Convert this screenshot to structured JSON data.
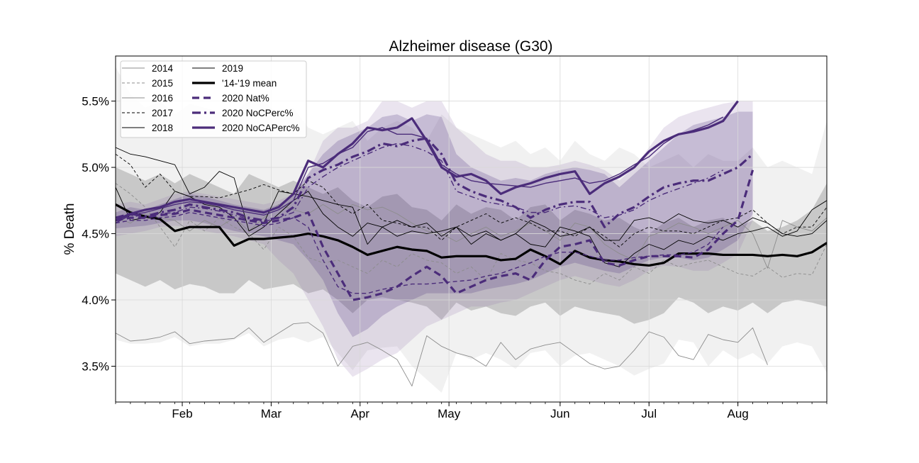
{
  "chart_data": {
    "type": "line",
    "title": "Alzheimer disease (G30)",
    "xlabel": "",
    "ylabel": "% Death",
    "ylim": [
      3.23,
      5.84
    ],
    "xlim": [
      0,
      48
    ],
    "x_unit": "week of year",
    "grid": true,
    "legend_position": "top-left",
    "x_ticks": [
      {
        "label": "Feb",
        "x": 4.5
      },
      {
        "label": "Mar",
        "x": 10.5
      },
      {
        "label": "Apr",
        "x": 16.5
      },
      {
        "label": "May",
        "x": 22.5
      },
      {
        "label": "Jun",
        "x": 30.0
      },
      {
        "label": "Jul",
        "x": 36.0
      },
      {
        "label": "Aug",
        "x": 42.0
      }
    ],
    "y_ticks": [
      {
        "label": "3.5%",
        "value": 3.5
      },
      {
        "label": "4.0%",
        "value": 4.0
      },
      {
        "label": "4.5%",
        "value": 4.5
      },
      {
        "label": "5.0%",
        "value": 5.0
      },
      {
        "label": "5.5%",
        "value": 5.5
      }
    ],
    "colors": {
      "grey": "#8c8c8c",
      "black": "#000000",
      "purple": "#4b2c7a",
      "band_grey": "#bdbdbd",
      "band_purple": "#8a6aa8"
    },
    "bands": [
      {
        "name": "band-outer-grey",
        "color": "#bdbdbd",
        "opacity": 0.22,
        "x_start": 0,
        "upper": [
          5.76,
          5.55,
          5.45,
          5.5,
          5.4,
          5.48,
          5.45,
          5.42,
          5.4,
          5.52,
          5.5,
          5.4,
          5.45,
          5.3,
          5.25,
          5.3,
          5.35,
          5.2,
          5.3,
          5.35,
          5.3,
          5.2,
          5.4,
          5.3,
          5.25,
          5.2,
          5.15,
          5.2,
          5.1,
          5.15,
          5.05,
          5.2,
          5.1,
          5.05,
          5.15,
          5.1,
          5.0,
          5.05,
          5.1,
          5.0,
          5.1,
          5.05,
          5.05,
          5.15,
          5.0,
          5.05,
          5.0,
          4.95,
          5.35
        ],
        "lower": [
          3.7,
          3.67,
          3.67,
          3.68,
          3.72,
          3.65,
          3.67,
          3.67,
          3.7,
          3.75,
          3.65,
          3.7,
          3.72,
          3.68,
          3.72,
          3.6,
          3.47,
          3.62,
          3.64,
          3.65,
          3.5,
          3.4,
          3.3,
          3.6,
          3.55,
          3.6,
          3.55,
          3.48,
          3.6,
          3.62,
          3.5,
          3.58,
          3.6,
          3.55,
          3.5,
          3.43,
          3.48,
          3.52,
          3.7,
          3.68,
          3.5,
          3.62,
          3.55,
          3.6,
          3.52,
          3.65,
          3.68,
          3.65,
          3.45
        ]
      },
      {
        "name": "band-mean-grey",
        "color": "#8c8c8c",
        "opacity": 0.4,
        "x_start": 0,
        "upper": [
          5.0,
          4.95,
          4.9,
          4.95,
          4.88,
          4.95,
          4.9,
          4.85,
          4.8,
          4.95,
          4.9,
          4.85,
          4.9,
          4.85,
          4.8,
          4.85,
          4.75,
          4.7,
          4.78,
          4.8,
          4.7,
          4.68,
          4.6,
          4.72,
          4.65,
          4.7,
          4.68,
          4.6,
          4.7,
          4.72,
          4.6,
          4.68,
          4.65,
          4.6,
          4.62,
          4.55,
          4.5,
          4.58,
          4.62,
          4.55,
          4.6,
          4.62,
          4.55,
          4.6,
          4.52,
          4.55,
          4.6,
          4.68,
          4.88
        ],
        "lower": [
          4.2,
          4.15,
          4.1,
          4.15,
          4.08,
          4.12,
          4.1,
          4.05,
          4.05,
          4.15,
          4.08,
          4.1,
          4.12,
          4.05,
          4.08,
          4.0,
          3.9,
          4.0,
          4.02,
          4.0,
          3.98,
          3.95,
          3.85,
          3.98,
          3.92,
          3.95,
          3.9,
          3.88,
          3.95,
          3.98,
          3.88,
          3.95,
          3.92,
          3.9,
          3.88,
          3.82,
          3.85,
          3.9,
          4.02,
          3.98,
          3.9,
          3.95,
          3.92,
          3.98,
          3.9,
          3.98,
          4.0,
          3.98,
          3.95
        ]
      },
      {
        "name": "band-outer-purple",
        "color": "#8a6aa8",
        "opacity": 0.18,
        "x_start": 0,
        "upper": [
          4.72,
          4.74,
          4.72,
          4.76,
          4.8,
          4.82,
          4.8,
          4.78,
          4.76,
          4.74,
          4.72,
          4.75,
          4.8,
          4.95,
          5.2,
          5.3,
          5.3,
          5.35,
          5.5,
          5.5,
          5.45,
          5.5,
          5.5,
          5.3,
          5.2,
          5.1,
          5.05,
          5.05,
          5.0,
          5.0,
          5.02,
          5.05,
          5.02,
          4.98,
          4.9,
          5.0,
          5.15,
          5.3,
          5.38,
          5.42,
          5.45,
          5.48,
          5.5,
          5.5
        ],
        "lower": [
          4.48,
          4.5,
          4.52,
          4.55,
          4.56,
          4.55,
          4.52,
          4.5,
          4.48,
          4.45,
          4.42,
          4.3,
          4.2,
          4.0,
          3.8,
          3.55,
          3.42,
          3.48,
          3.55,
          3.6,
          3.7,
          3.8,
          3.85,
          3.9,
          3.95,
          3.95,
          3.98,
          4.0,
          4.05,
          4.1,
          4.15,
          4.18,
          4.15,
          4.12,
          4.1,
          4.15,
          4.22,
          4.26,
          4.25,
          4.22,
          4.22,
          4.28,
          4.35,
          4.6
        ]
      },
      {
        "name": "band-inner-purple",
        "color": "#4b2c7a",
        "opacity": 0.22,
        "x_start": 0,
        "upper": [
          4.66,
          4.7,
          4.68,
          4.72,
          4.76,
          4.8,
          4.78,
          4.75,
          4.72,
          4.7,
          4.68,
          4.72,
          4.8,
          4.95,
          5.1,
          5.2,
          5.25,
          5.3,
          5.38,
          5.4,
          5.35,
          5.4,
          5.38,
          5.1,
          5.0,
          4.95,
          4.9,
          4.92,
          4.9,
          4.95,
          4.98,
          5.0,
          4.98,
          4.95,
          4.85,
          4.95,
          5.05,
          5.15,
          5.25,
          5.32,
          5.35,
          5.38,
          5.42,
          5.42
        ],
        "lower": [
          4.54,
          4.55,
          4.56,
          4.58,
          4.6,
          4.6,
          4.58,
          4.55,
          4.52,
          4.5,
          4.48,
          4.45,
          4.42,
          4.3,
          4.15,
          3.9,
          3.72,
          3.78,
          3.88,
          3.95,
          4.0,
          4.05,
          4.05,
          4.05,
          4.05,
          4.08,
          4.1,
          4.12,
          4.15,
          4.2,
          4.25,
          4.28,
          4.25,
          4.22,
          4.2,
          4.25,
          4.3,
          4.32,
          4.32,
          4.3,
          4.32,
          4.38,
          4.45,
          4.65
        ]
      }
    ],
    "series": [
      {
        "name": "2014",
        "style": "thin-grey-solid",
        "x_start": 0,
        "values": [
          3.75,
          3.69,
          3.7,
          3.72,
          3.76,
          3.67,
          3.69,
          3.7,
          3.71,
          3.79,
          3.68,
          3.75,
          3.82,
          3.83,
          3.75,
          3.5,
          3.65,
          3.68,
          3.62,
          3.55,
          3.35,
          3.73,
          3.65,
          3.6,
          3.57,
          3.5,
          3.68,
          3.55,
          3.63,
          3.66,
          3.68,
          3.6,
          3.52,
          3.48,
          3.5,
          3.62,
          3.76,
          3.72,
          3.58,
          3.55,
          3.74,
          3.7,
          3.68,
          3.79,
          3.51
        ]
      },
      {
        "name": "2015",
        "style": "thin-grey-dashed",
        "x_start": 0,
        "values": [
          4.88,
          4.8,
          4.7,
          4.55,
          4.4,
          4.6,
          4.52,
          4.62,
          4.55,
          4.5,
          4.38,
          4.55,
          4.48,
          4.32,
          4.28,
          4.3,
          4.25,
          4.2,
          4.3,
          4.25,
          4.35,
          4.3,
          4.28,
          4.2,
          4.25,
          4.15,
          4.35,
          4.3,
          4.28,
          4.22,
          4.2,
          4.15,
          4.12,
          4.2,
          4.15,
          4.25,
          4.2,
          4.3,
          4.25,
          4.28,
          4.3,
          4.25,
          4.2,
          4.18,
          4.25,
          4.17,
          4.2,
          4.19,
          4.42
        ]
      },
      {
        "name": "2016",
        "style": "thin-grey-solid",
        "x_start": 0,
        "values": [
          4.62,
          4.58,
          4.65,
          4.62,
          4.6,
          4.52,
          4.6,
          4.55,
          4.62,
          4.52,
          4.62,
          4.72,
          4.68,
          4.65,
          4.72,
          4.65,
          4.72,
          4.68,
          4.7,
          4.65,
          4.58,
          4.52,
          4.5,
          4.44,
          4.5,
          4.55,
          4.48,
          4.52,
          4.58,
          4.52,
          4.45,
          4.58,
          4.55,
          4.42,
          4.35,
          4.3,
          4.48,
          4.52,
          4.58,
          4.55,
          4.5,
          4.55,
          4.6,
          4.5,
          4.24,
          4.6,
          4.55,
          4.52,
          4.62
        ]
      },
      {
        "name": "2017",
        "style": "thin-black-dashed",
        "x_start": 0,
        "values": [
          5.1,
          5.02,
          4.85,
          4.95,
          4.82,
          4.78,
          4.78,
          4.77,
          4.8,
          4.83,
          4.87,
          4.83,
          4.8,
          4.9,
          4.85,
          4.72,
          4.65,
          4.72,
          4.6,
          4.58,
          4.55,
          4.55,
          4.45,
          4.55,
          4.6,
          4.65,
          4.58,
          4.62,
          4.58,
          4.52,
          4.52,
          4.48,
          4.55,
          4.48,
          4.4,
          4.5,
          4.55,
          4.52,
          4.52,
          4.5,
          4.55,
          4.6,
          4.62,
          4.68,
          4.58,
          4.5,
          4.55,
          4.55,
          4.7
        ]
      },
      {
        "name": "2018",
        "style": "thin-black-solid",
        "x_start": 0,
        "values": [
          5.15,
          5.1,
          5.08,
          5.05,
          5.02,
          4.8,
          4.85,
          4.97,
          4.92,
          4.52,
          4.58,
          4.82,
          4.8,
          4.78,
          4.75,
          4.72,
          4.7,
          4.42,
          4.55,
          4.6,
          4.55,
          4.58,
          4.48,
          4.55,
          4.42,
          4.5,
          4.45,
          4.5,
          4.6,
          4.55,
          4.48,
          4.5,
          4.55,
          4.45,
          4.45,
          4.6,
          4.62,
          4.58,
          4.65,
          4.6,
          4.58,
          4.6,
          4.55,
          4.62,
          4.58,
          4.5,
          4.48,
          4.5,
          4.6
        ]
      },
      {
        "name": "2019",
        "style": "thin-black-solid",
        "x_start": 0,
        "values": [
          4.85,
          4.6,
          4.62,
          4.66,
          4.82,
          4.78,
          4.72,
          4.7,
          4.62,
          4.48,
          4.55,
          4.65,
          4.75,
          4.82,
          4.65,
          4.55,
          4.48,
          4.58,
          4.55,
          4.48,
          4.52,
          4.5,
          4.52,
          4.55,
          4.48,
          4.52,
          4.45,
          4.5,
          4.42,
          4.4,
          4.55,
          4.52,
          4.48,
          4.28,
          4.25,
          4.35,
          4.42,
          4.38,
          4.45,
          4.42,
          4.48,
          4.45,
          4.5,
          4.52,
          4.55,
          4.48,
          4.52,
          4.68,
          4.75
        ]
      },
      {
        "name": "'14-'19 mean",
        "style": "thick-black-solid",
        "x_start": 0,
        "values": [
          4.72,
          4.66,
          4.63,
          4.61,
          4.52,
          4.55,
          4.55,
          4.55,
          4.41,
          4.46,
          4.46,
          4.47,
          4.48,
          4.5,
          4.48,
          4.45,
          4.4,
          4.34,
          4.37,
          4.4,
          4.38,
          4.37,
          4.32,
          4.33,
          4.33,
          4.33,
          4.3,
          4.31,
          4.38,
          4.33,
          4.27,
          4.37,
          4.32,
          4.3,
          4.29,
          4.27,
          4.26,
          4.28,
          4.35,
          4.35,
          4.35,
          4.34,
          4.34,
          4.34,
          4.33,
          4.34,
          4.33,
          4.36,
          4.43
        ]
      },
      {
        "name": "2020 Nat%",
        "style": "purple-dashed",
        "x_start": 0,
        "values": [
          4.6,
          4.62,
          4.62,
          4.64,
          4.65,
          4.68,
          4.66,
          4.64,
          4.62,
          4.6,
          4.58,
          4.6,
          4.62,
          4.66,
          4.4,
          4.2,
          4.0,
          4.02,
          4.05,
          4.1,
          4.18,
          4.25,
          4.18,
          4.05,
          4.1,
          4.15,
          4.18,
          4.2,
          4.15,
          4.3,
          4.4,
          4.42,
          4.45,
          4.28,
          4.26,
          4.3,
          4.33,
          4.33,
          4.33,
          4.32,
          4.38,
          4.5,
          4.6,
          4.98
        ]
      },
      {
        "name": "2020 NoCPerc%",
        "style": "purple-dashdot",
        "x_start": 0,
        "values": [
          4.62,
          4.65,
          4.63,
          4.66,
          4.68,
          4.72,
          4.7,
          4.68,
          4.66,
          4.62,
          4.6,
          4.62,
          4.7,
          4.92,
          4.98,
          5.02,
          5.08,
          5.12,
          5.18,
          5.16,
          5.2,
          5.22,
          5.1,
          4.88,
          4.82,
          4.78,
          4.75,
          4.7,
          4.62,
          4.68,
          4.72,
          4.74,
          4.74,
          4.55,
          4.65,
          4.7,
          4.78,
          4.85,
          4.88,
          4.9,
          4.9,
          4.95,
          5.0,
          5.1
        ]
      },
      {
        "name": "2020 NoCAPerc%",
        "style": "purple-solid",
        "x_start": 0,
        "values": [
          4.6,
          4.65,
          4.68,
          4.7,
          4.74,
          4.76,
          4.74,
          4.72,
          4.7,
          4.68,
          4.66,
          4.7,
          4.8,
          5.05,
          5.0,
          5.1,
          5.18,
          5.3,
          5.28,
          5.3,
          5.37,
          5.2,
          5.0,
          4.93,
          4.95,
          4.9,
          4.8,
          4.85,
          4.88,
          4.92,
          4.95,
          4.97,
          4.8,
          4.88,
          4.93,
          5.0,
          5.12,
          5.2,
          5.25,
          5.27,
          5.3,
          5.35,
          5.5
        ]
      },
      {
        "name": "",
        "style": "purple-solid-thin",
        "x_start": 0,
        "values": [
          4.58,
          4.64,
          4.66,
          4.69,
          4.72,
          4.74,
          4.73,
          4.71,
          4.68,
          4.66,
          4.64,
          4.68,
          4.75,
          5.0,
          5.03,
          5.1,
          5.15,
          5.27,
          5.3,
          5.25,
          5.25,
          5.22,
          5.02,
          4.95,
          4.9,
          4.88,
          4.87,
          4.86,
          4.85,
          4.88,
          4.9,
          4.92,
          4.88,
          4.9,
          4.95,
          5.02,
          5.08,
          5.18,
          5.25,
          5.28,
          5.32,
          5.38
        ]
      },
      {
        "name": "",
        "style": "purple-dashdot-thin",
        "x_start": 0,
        "values": [
          4.6,
          4.64,
          4.62,
          4.65,
          4.66,
          4.7,
          4.69,
          4.67,
          4.64,
          4.61,
          4.59,
          4.62,
          4.66,
          4.85,
          4.93,
          5.0,
          5.05,
          5.1,
          5.15,
          5.18,
          5.16,
          5.12,
          5.05,
          4.82,
          4.78,
          4.74,
          4.72,
          4.7,
          4.66,
          4.66,
          4.7,
          4.71,
          4.68,
          4.62,
          4.64,
          4.68,
          4.75,
          4.8,
          4.84,
          4.88,
          4.92,
          4.98
        ]
      },
      {
        "name": "",
        "style": "purple-dashed-thin",
        "x_start": 0,
        "values": [
          4.58,
          4.6,
          4.6,
          4.62,
          4.63,
          4.66,
          4.64,
          4.62,
          4.6,
          4.58,
          4.56,
          4.58,
          4.62,
          4.55,
          4.3,
          4.1,
          4.05,
          4.05,
          4.08,
          4.1,
          4.12,
          4.12,
          4.13,
          4.14,
          4.15,
          4.18,
          4.2,
          4.24,
          4.28,
          4.33,
          4.36,
          4.36,
          4.33,
          4.3,
          4.3,
          4.32,
          4.33,
          4.34,
          4.34,
          4.36,
          4.42,
          4.55
        ]
      }
    ],
    "legend": {
      "col1": [
        "2014",
        "2015",
        "2016",
        "2017",
        "2018"
      ],
      "col2": [
        "2019",
        "'14-'19 mean",
        "2020 Nat%",
        "2020 NoCPerc%",
        "2020 NoCAPerc%"
      ]
    }
  }
}
